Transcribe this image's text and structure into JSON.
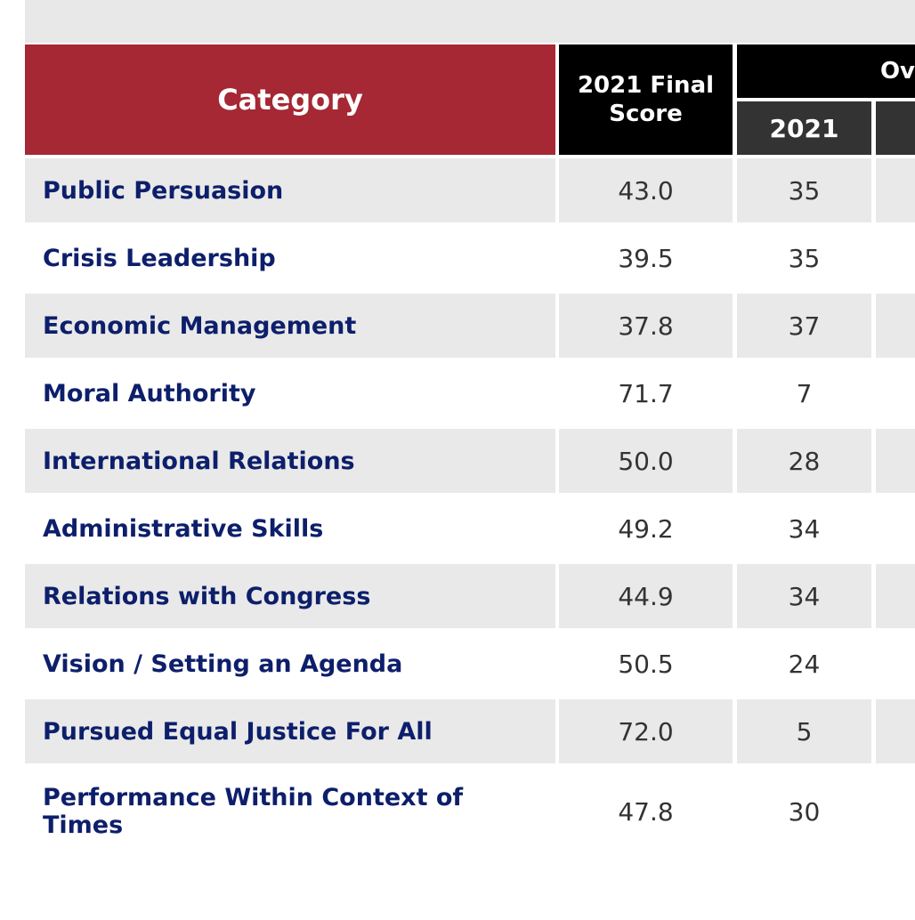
{
  "header": {
    "category": "Category",
    "final_score": "2021 Final Score",
    "overall": "Ov",
    "year": "2021"
  },
  "table": {
    "rows": [
      [
        "Public Persuasion",
        "43.0",
        "35"
      ],
      [
        "Crisis Leadership",
        "39.5",
        "35"
      ],
      [
        "Economic Management",
        "37.8",
        "37"
      ],
      [
        "Moral Authority",
        "71.7",
        "7"
      ],
      [
        "International Relations",
        "50.0",
        "28"
      ],
      [
        "Administrative Skills",
        "49.2",
        "34"
      ],
      [
        "Relations with Congress",
        "44.9",
        "34"
      ],
      [
        "Vision / Setting an Agenda",
        "50.5",
        "24"
      ],
      [
        "Pursued Equal Justice For All",
        "72.0",
        "5"
      ],
      [
        "Performance Within Context of Times",
        "47.8",
        "30"
      ]
    ]
  }
}
